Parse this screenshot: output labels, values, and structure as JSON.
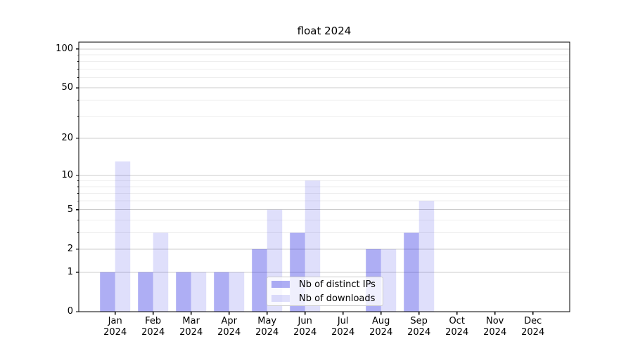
{
  "title": "float 2024",
  "chart_data": {
    "type": "bar",
    "title": "float 2024",
    "categories": [
      "Jan 2024",
      "Feb 2024",
      "Mar 2024",
      "Apr 2024",
      "May 2024",
      "Jun 2024",
      "Jul 2024",
      "Aug 2024",
      "Sep 2024",
      "Oct 2024",
      "Nov 2024",
      "Dec 2024"
    ],
    "series": [
      {
        "name": "Nb of distinct IPs",
        "color": "rgba(30,30,225,0.36)",
        "values": [
          1,
          1,
          1,
          1,
          2,
          3,
          0,
          2,
          3,
          0,
          0,
          0
        ]
      },
      {
        "name": "Nb of downloads",
        "color": "rgba(30,30,225,0.14)",
        "values": [
          13,
          3,
          1,
          1,
          5,
          9,
          0,
          2,
          6,
          0,
          0,
          0
        ]
      }
    ],
    "xlabel": "",
    "ylabel": "",
    "y_scale": "log10(1+x)",
    "y_major_ticks": [
      0,
      1,
      2,
      5,
      10,
      20,
      50,
      100
    ],
    "y_minor_ticks": [
      3,
      4,
      6,
      7,
      8,
      9,
      30,
      40,
      60,
      70,
      80,
      90
    ],
    "ylim": [
      0,
      113
    ],
    "grid": "horizontal",
    "legend_position": "lower center inside axes",
    "colors": {
      "major_grid": "#cccccc",
      "minor_grid": "#eeeeee",
      "spine": "#000000",
      "text": "#000000"
    }
  }
}
